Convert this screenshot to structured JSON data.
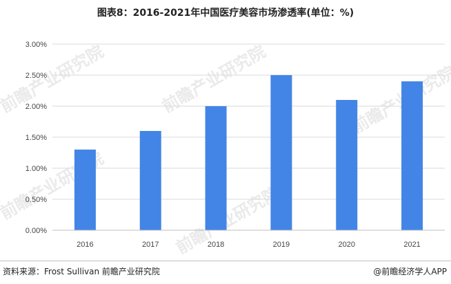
{
  "title": "图表8：2016-2021年中国医疗美容市场渗透率(单位：%)",
  "source_text": "资料来源：Frost Sullivan 前瞻产业研究院",
  "brand_text": "@前瞻经济学人APP",
  "watermark_text": "前瞻产业研究院",
  "colors": {
    "bar": "#4285e6",
    "grid": "#d9d9d9",
    "axis": "#bfbfbf"
  },
  "icons": {
    "brand_logo": "qianzhan-logo-icon"
  },
  "chart_data": {
    "type": "bar",
    "title": "图表8：2016-2021年中国医疗美容市场渗透率(单位：%)",
    "categories": [
      "2016",
      "2017",
      "2018",
      "2019",
      "2020",
      "2021"
    ],
    "values": [
      1.3,
      1.6,
      2.0,
      2.5,
      2.1,
      2.4
    ],
    "ylim": [
      0,
      3.0
    ],
    "yticks": [
      0,
      0.5,
      1.0,
      1.5,
      2.0,
      2.5,
      3.0
    ],
    "ytick_labels": [
      "0.00%",
      "0.50%",
      "1.00%",
      "1.50%",
      "2.00%",
      "2.50%",
      "3.00%"
    ],
    "xlabel": "",
    "ylabel": "",
    "grid": true,
    "legend": "none"
  }
}
